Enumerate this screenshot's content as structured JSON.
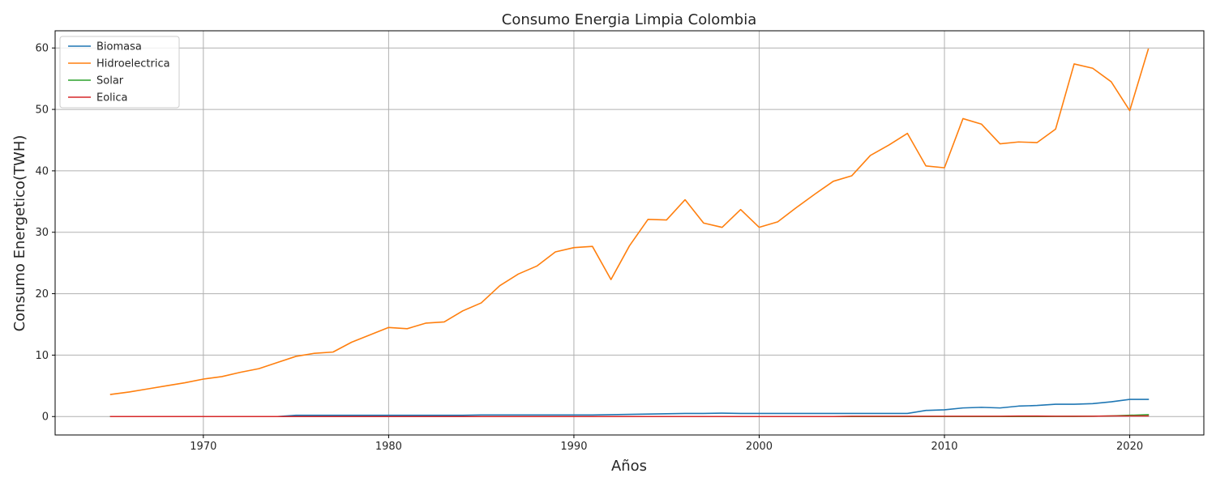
{
  "chart_data": {
    "type": "line",
    "title": "Consumo  Energia Limpia Colombia",
    "xlabel": "Años",
    "ylabel": "Consumo Energetico(TWH)",
    "xlim": [
      1962,
      2024
    ],
    "ylim": [
      -3,
      62.8
    ],
    "x_ticks": [
      1970,
      1980,
      1990,
      2000,
      2010,
      2020
    ],
    "y_ticks": [
      0,
      10,
      20,
      30,
      40,
      50,
      60
    ],
    "grid": true,
    "legend_position": "top-left",
    "x": [
      1965,
      1966,
      1967,
      1968,
      1969,
      1970,
      1971,
      1972,
      1973,
      1974,
      1975,
      1976,
      1977,
      1978,
      1979,
      1980,
      1981,
      1982,
      1983,
      1984,
      1985,
      1986,
      1987,
      1988,
      1989,
      1990,
      1991,
      1992,
      1993,
      1994,
      1995,
      1996,
      1997,
      1998,
      1999,
      2000,
      2001,
      2002,
      2003,
      2004,
      2005,
      2006,
      2007,
      2008,
      2009,
      2010,
      2011,
      2012,
      2013,
      2014,
      2015,
      2016,
      2017,
      2018,
      2019,
      2020,
      2021
    ],
    "series": [
      {
        "name": "Biomasa",
        "color": "#1f77b4",
        "values": [
          0,
          0,
          0,
          0,
          0,
          0,
          0,
          0,
          0,
          0,
          0.2,
          0.2,
          0.2,
          0.2,
          0.2,
          0.2,
          0.2,
          0.2,
          0.2,
          0.2,
          0.25,
          0.25,
          0.25,
          0.25,
          0.25,
          0.25,
          0.25,
          0.3,
          0.35,
          0.4,
          0.45,
          0.5,
          0.5,
          0.55,
          0.5,
          0.5,
          0.5,
          0.5,
          0.5,
          0.5,
          0.5,
          0.5,
          0.5,
          0.5,
          1.0,
          1.1,
          1.4,
          1.5,
          1.4,
          1.7,
          1.8,
          2.0,
          2.0,
          2.1,
          2.4,
          2.8,
          2.8
        ]
      },
      {
        "name": "Hidroelectrica",
        "color": "#ff7f0e",
        "values": [
          3.6,
          4.0,
          4.5,
          5.0,
          5.5,
          6.1,
          6.5,
          7.2,
          7.8,
          8.8,
          9.8,
          10.3,
          10.5,
          12.1,
          13.3,
          14.5,
          14.3,
          15.2,
          15.4,
          17.2,
          18.5,
          21.3,
          23.2,
          24.5,
          26.8,
          27.5,
          27.7,
          22.3,
          27.8,
          32.1,
          32.0,
          35.3,
          31.5,
          30.8,
          33.7,
          30.8,
          31.7,
          34.0,
          36.2,
          38.3,
          39.2,
          42.5,
          44.2,
          46.1,
          40.8,
          40.5,
          48.5,
          47.6,
          44.4,
          44.7,
          44.6,
          46.8,
          57.4,
          56.7,
          54.5,
          49.8,
          59.8
        ]
      },
      {
        "name": "Solar",
        "color": "#2ca02c",
        "values": [
          0,
          0,
          0,
          0,
          0,
          0,
          0,
          0,
          0,
          0,
          0,
          0,
          0,
          0,
          0,
          0,
          0,
          0,
          0,
          0,
          0,
          0,
          0,
          0,
          0,
          0,
          0,
          0,
          0,
          0,
          0,
          0,
          0,
          0,
          0,
          0,
          0,
          0,
          0,
          0,
          0,
          0,
          0,
          0,
          0,
          0,
          0,
          0,
          0,
          0.01,
          0.01,
          0.02,
          0.03,
          0.05,
          0.1,
          0.2,
          0.3
        ]
      },
      {
        "name": "Eolica",
        "color": "#d62728",
        "values": [
          0,
          0,
          0,
          0,
          0,
          0,
          0,
          0,
          0,
          0,
          0,
          0,
          0,
          0,
          0,
          0,
          0,
          0,
          0,
          0,
          0,
          0,
          0,
          0,
          0,
          0,
          0,
          0,
          0,
          0,
          0,
          0,
          0,
          0,
          0,
          0,
          0,
          0,
          0,
          0,
          0.05,
          0.05,
          0.05,
          0.05,
          0.05,
          0.05,
          0.05,
          0.05,
          0.05,
          0.07,
          0.07,
          0.05,
          0.05,
          0.05,
          0.1,
          0.1,
          0.1
        ]
      }
    ]
  }
}
